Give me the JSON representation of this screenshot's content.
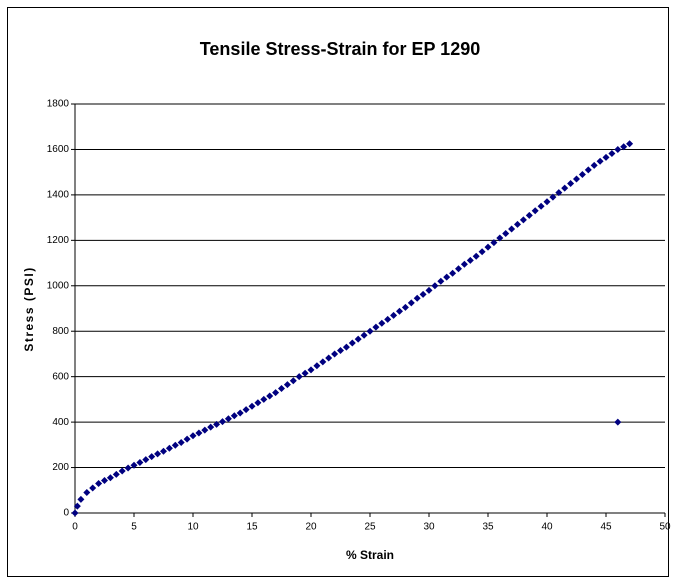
{
  "chart_data": {
    "type": "scatter",
    "title": "Tensile Stress-Strain for EP 1290",
    "x_label": "% Strain",
    "y_label": "Stress (PSI)",
    "xlim": [
      0,
      50
    ],
    "ylim": [
      0,
      1800
    ],
    "xticks": [
      0,
      5,
      10,
      15,
      20,
      25,
      30,
      35,
      40,
      45,
      50
    ],
    "yticks": [
      0,
      200,
      400,
      600,
      800,
      1000,
      1200,
      1400,
      1600,
      1800
    ],
    "grid": true,
    "series": [
      {
        "color": "#000080",
        "x": [
          0,
          0.2,
          0.5,
          1,
          1.5,
          2,
          2.5,
          3,
          3.5,
          4,
          4.5,
          5,
          5.5,
          6,
          6.5,
          7,
          7.5,
          8,
          8.5,
          9,
          9.5,
          10,
          10.5,
          11,
          11.5,
          12,
          12.5,
          13,
          13.5,
          14,
          14.5,
          15,
          15.5,
          16,
          16.5,
          17,
          17.5,
          18,
          18.5,
          19,
          19.5,
          20,
          20.5,
          21,
          21.5,
          22,
          22.5,
          23,
          23.5,
          24,
          24.5,
          25,
          25.5,
          26,
          26.5,
          27,
          27.5,
          28,
          28.5,
          29,
          29.5,
          30,
          30.5,
          31,
          31.5,
          32,
          32.5,
          33,
          33.5,
          34,
          34.5,
          35,
          35.5,
          36,
          36.5,
          37,
          37.5,
          38,
          38.5,
          39,
          39.5,
          40,
          40.5,
          41,
          41.5,
          42,
          42.5,
          43,
          43.5,
          44,
          44.5,
          45,
          45.5,
          46,
          46.5,
          47,
          46
        ],
        "values": [
          0,
          30,
          60,
          90,
          110,
          130,
          143,
          155,
          170,
          185,
          198,
          210,
          222,
          235,
          248,
          260,
          272,
          285,
          298,
          310,
          325,
          340,
          352,
          365,
          378,
          390,
          402,
          415,
          428,
          440,
          455,
          470,
          485,
          500,
          515,
          530,
          548,
          565,
          582,
          600,
          615,
          630,
          648,
          665,
          682,
          700,
          715,
          730,
          748,
          765,
          782,
          800,
          818,
          835,
          852,
          870,
          888,
          905,
          925,
          945,
          962,
          980,
          1000,
          1020,
          1038,
          1055,
          1075,
          1095,
          1112,
          1130,
          1150,
          1170,
          1190,
          1210,
          1230,
          1250,
          1270,
          1290,
          1310,
          1330,
          1350,
          1370,
          1390,
          1410,
          1430,
          1450,
          1470,
          1490,
          1510,
          1530,
          1548,
          1565,
          1582,
          1600,
          1612,
          1625,
          400
        ]
      }
    ]
  }
}
